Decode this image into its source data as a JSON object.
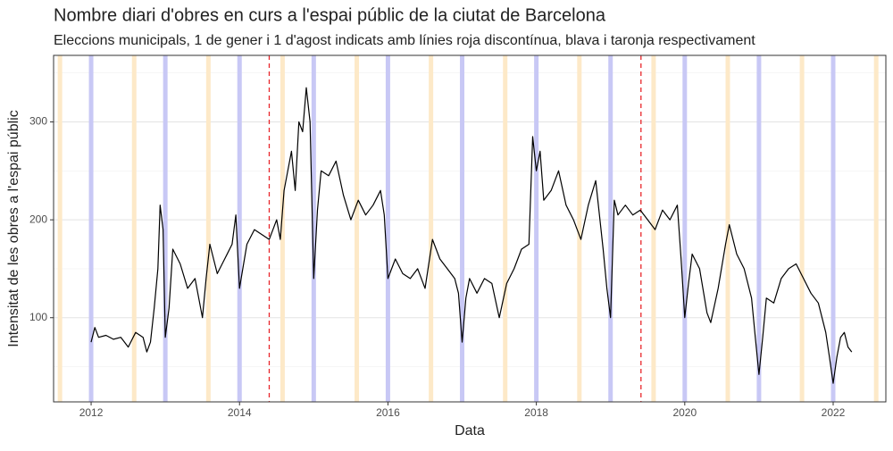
{
  "chart_data": {
    "type": "line",
    "title": "Nombre diari d'obres en curs a l'espai públic de la ciutat de Barcelona",
    "subtitle": "Eleccions municipals, 1 de gener i 1 d'agost indicats amb línies roja discontínua, blava i taronja respectivament",
    "x_label": "Data",
    "y_label": "Intensitat de les obres a l'espai públic",
    "color": "#000000",
    "xlim": [
      2011.494,
      2022.71
    ],
    "ylim": [
      14,
      368
    ],
    "xticks": [
      2012,
      2014,
      2016,
      2018,
      2020,
      2022
    ],
    "yticks": [
      100,
      200,
      300
    ],
    "xminor": [
      2013,
      2015,
      2017,
      2019,
      2021
    ],
    "yminor": [
      50,
      150,
      250,
      350
    ],
    "grid": true,
    "january_color": "#c8c8f5",
    "august_color": "#fde9c8",
    "election_color": "#e8262b",
    "january_lines": [
      2012,
      2013,
      2014,
      2015,
      2016,
      2017,
      2018,
      2019,
      2020,
      2021,
      2022
    ],
    "august_lines": [
      2011.58,
      2012.58,
      2013.58,
      2014.58,
      2015.58,
      2016.58,
      2017.58,
      2018.58,
      2019.58,
      2020.58,
      2021.58,
      2022.58
    ],
    "election_lines": [
      2014.4,
      2019.41
    ],
    "x": [
      2012.0,
      2012.05,
      2012.1,
      2012.2,
      2012.3,
      2012.4,
      2012.5,
      2012.6,
      2012.7,
      2012.75,
      2012.8,
      2012.85,
      2012.9,
      2012.93,
      2012.97,
      2013.0,
      2013.05,
      2013.1,
      2013.2,
      2013.3,
      2013.4,
      2013.5,
      2013.55,
      2013.6,
      2013.7,
      2013.8,
      2013.9,
      2013.95,
      2014.0,
      2014.1,
      2014.2,
      2014.3,
      2014.4,
      2014.5,
      2014.55,
      2014.6,
      2014.7,
      2014.75,
      2014.8,
      2014.85,
      2014.9,
      2014.95,
      2015.0,
      2015.05,
      2015.1,
      2015.2,
      2015.3,
      2015.4,
      2015.5,
      2015.6,
      2015.7,
      2015.8,
      2015.9,
      2015.95,
      2016.0,
      2016.1,
      2016.2,
      2016.3,
      2016.4,
      2016.5,
      2016.6,
      2016.7,
      2016.8,
      2016.9,
      2016.95,
      2017.0,
      2017.05,
      2017.1,
      2017.2,
      2017.3,
      2017.4,
      2017.5,
      2017.6,
      2017.7,
      2017.8,
      2017.9,
      2017.95,
      2018.0,
      2018.05,
      2018.1,
      2018.2,
      2018.3,
      2018.4,
      2018.5,
      2018.6,
      2018.7,
      2018.8,
      2018.9,
      2018.95,
      2019.0,
      2019.05,
      2019.1,
      2019.2,
      2019.3,
      2019.4,
      2019.5,
      2019.6,
      2019.7,
      2019.8,
      2019.9,
      2019.95,
      2020.0,
      2020.05,
      2020.1,
      2020.2,
      2020.3,
      2020.35,
      2020.45,
      2020.55,
      2020.6,
      2020.7,
      2020.8,
      2020.9,
      2020.95,
      2021.0,
      2021.05,
      2021.1,
      2021.2,
      2021.3,
      2021.4,
      2021.5,
      2021.6,
      2021.7,
      2021.8,
      2021.9,
      2021.95,
      2022.0,
      2022.05,
      2022.1,
      2022.15,
      2022.2,
      2022.25
    ],
    "values": [
      75,
      90,
      80,
      82,
      78,
      80,
      70,
      85,
      80,
      65,
      75,
      110,
      150,
      215,
      190,
      80,
      110,
      170,
      155,
      130,
      140,
      100,
      140,
      175,
      145,
      160,
      175,
      205,
      130,
      175,
      190,
      185,
      180,
      200,
      180,
      230,
      270,
      230,
      300,
      290,
      335,
      300,
      140,
      210,
      250,
      245,
      260,
      225,
      200,
      220,
      205,
      215,
      230,
      205,
      140,
      160,
      145,
      140,
      150,
      130,
      180,
      160,
      150,
      140,
      125,
      75,
      120,
      140,
      125,
      140,
      135,
      100,
      135,
      150,
      170,
      175,
      285,
      250,
      270,
      220,
      230,
      250,
      215,
      200,
      180,
      215,
      240,
      170,
      130,
      100,
      220,
      205,
      215,
      205,
      210,
      200,
      190,
      210,
      200,
      215,
      160,
      100,
      135,
      165,
      150,
      105,
      95,
      130,
      175,
      195,
      165,
      150,
      120,
      80,
      42,
      80,
      120,
      115,
      140,
      150,
      155,
      140,
      125,
      115,
      85,
      60,
      33,
      60,
      80,
      85,
      70,
      65
    ]
  }
}
